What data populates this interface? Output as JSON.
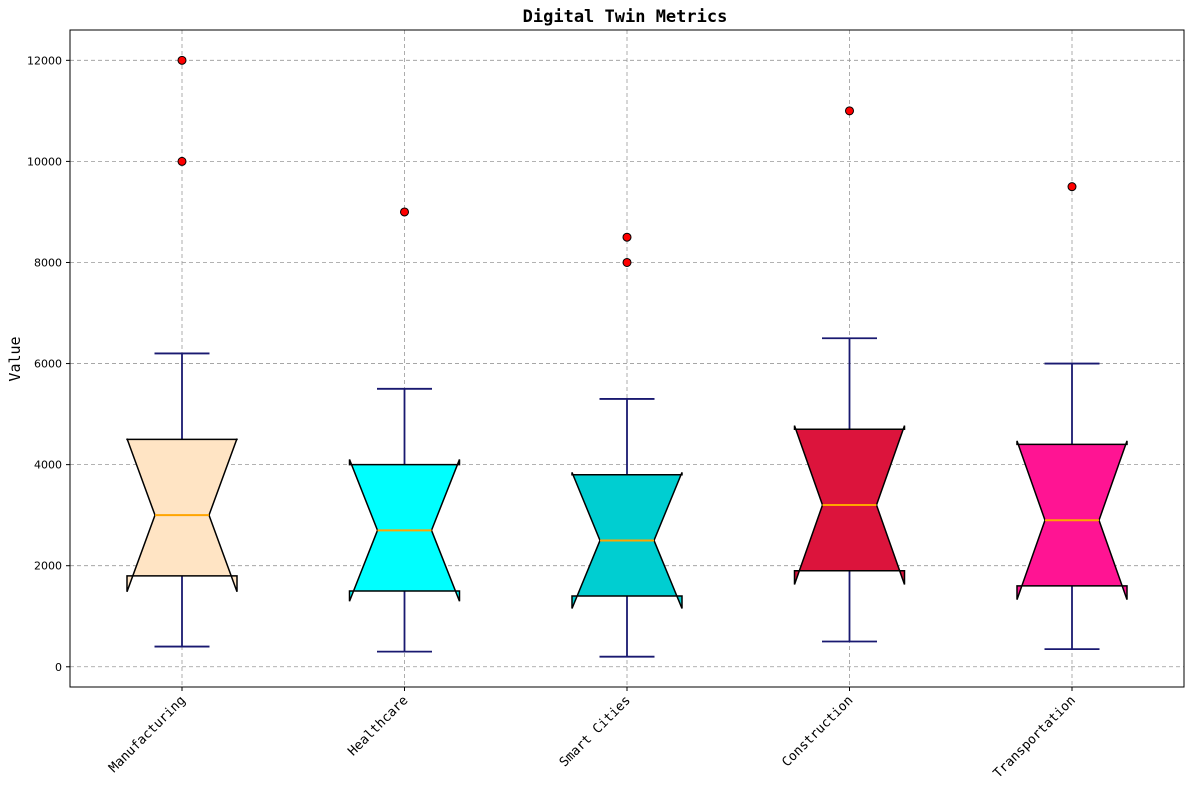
{
  "chart_data": {
    "type": "box",
    "title": "Digital Twin Metrics",
    "ylabel": "Value",
    "xlabel": "",
    "ylim": [
      -400,
      12600
    ],
    "yticks": [
      0,
      2000,
      4000,
      6000,
      8000,
      10000,
      12000
    ],
    "grid": true,
    "notched": true,
    "colors": {
      "whisker": "#191970",
      "median": "#FFA500",
      "flier": "#FF0000"
    },
    "categories": [
      "Manufacturing",
      "Healthcare",
      "Smart Cities",
      "Construction",
      "Transportation"
    ],
    "boxes": [
      {
        "name": "Manufacturing",
        "whislo": 400,
        "q1": 1800,
        "med": 3000,
        "q3": 4500,
        "whishi": 6200,
        "fliers": [
          10000,
          12000
        ],
        "color": "#FFE4C4"
      },
      {
        "name": "Healthcare",
        "whislo": 300,
        "q1": 1500,
        "med": 2700,
        "q3": 4000,
        "whishi": 5500,
        "fliers": [
          9000
        ],
        "color": "#00FFFF"
      },
      {
        "name": "Smart Cities",
        "whislo": 200,
        "q1": 1400,
        "med": 2500,
        "q3": 3800,
        "whishi": 5300,
        "fliers": [
          8000,
          8500
        ],
        "color": "#00CED1"
      },
      {
        "name": "Construction",
        "whislo": 500,
        "q1": 1900,
        "med": 3200,
        "q3": 4700,
        "whishi": 6500,
        "fliers": [
          11000
        ],
        "color": "#DC143C"
      },
      {
        "name": "Transportation",
        "whislo": 350,
        "q1": 1600,
        "med": 2900,
        "q3": 4400,
        "whishi": 6000,
        "fliers": [
          9500
        ],
        "color": "#FF1493"
      }
    ]
  }
}
